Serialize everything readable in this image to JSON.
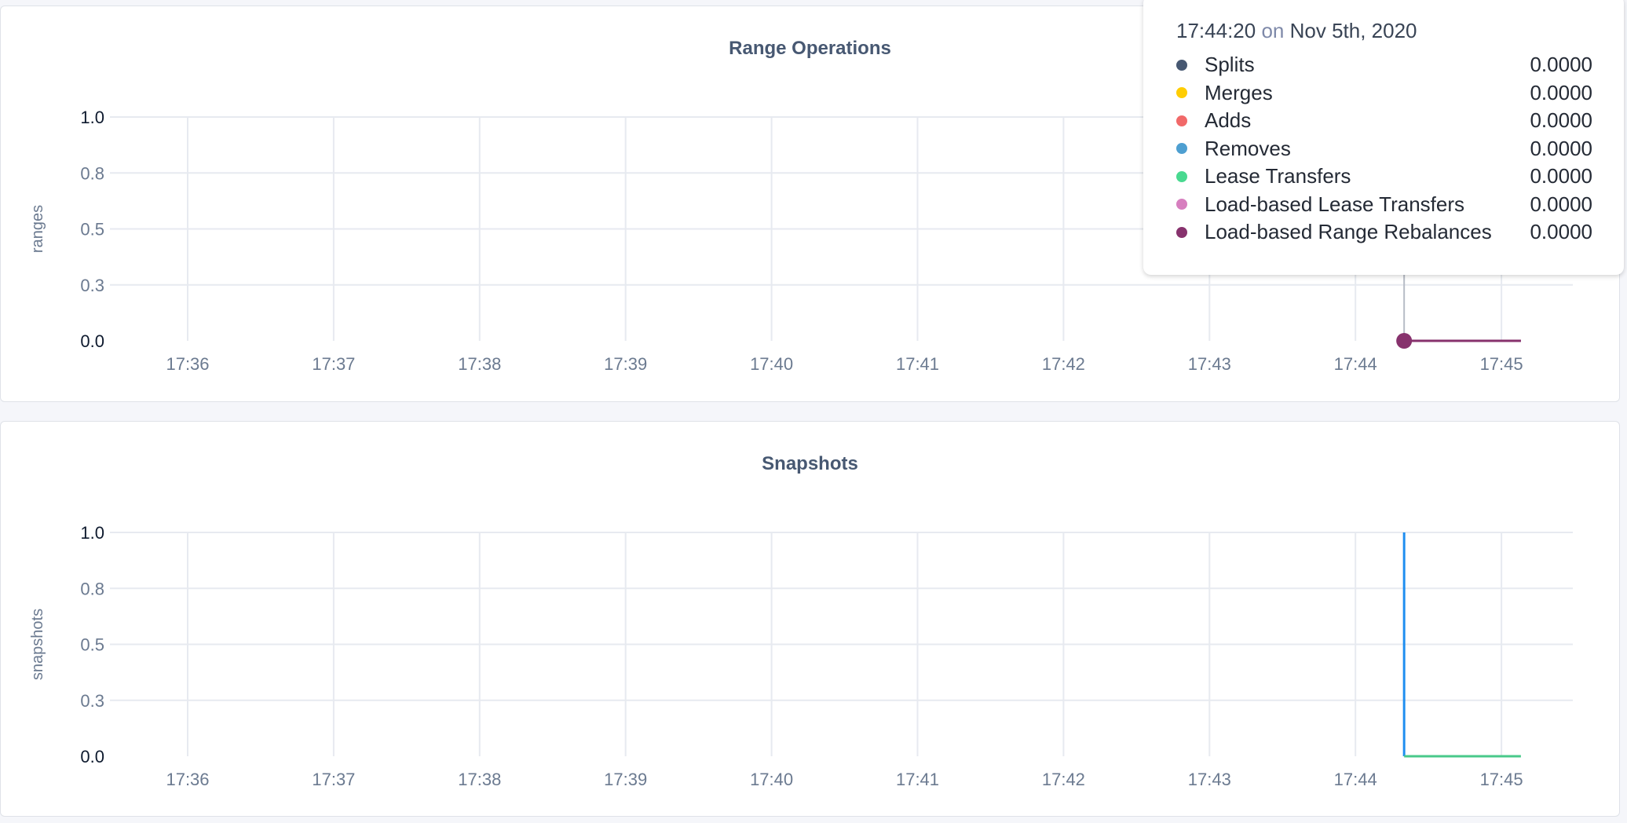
{
  "tooltip": {
    "time": "17:44:20",
    "on": "on",
    "date": "Nov 5th, 2020",
    "rows": [
      {
        "label": "Splits",
        "value": "0.0000",
        "color": "#475872"
      },
      {
        "label": "Merges",
        "value": "0.0000",
        "color": "#ffcd02"
      },
      {
        "label": "Adds",
        "value": "0.0000",
        "color": "#f16969"
      },
      {
        "label": "Removes",
        "value": "0.0000",
        "color": "#4e9fd1"
      },
      {
        "label": "Lease Transfers",
        "value": "0.0000",
        "color": "#49d990"
      },
      {
        "label": "Load-based Lease Transfers",
        "value": "0.0000",
        "color": "#d77fbf"
      },
      {
        "label": "Load-based Range Rebalances",
        "value": "0.0000",
        "color": "#87326d"
      }
    ]
  },
  "chart_data": [
    {
      "type": "line",
      "title": "Range Operations",
      "ylabel": "ranges",
      "ylim": [
        0,
        1
      ],
      "yticks": [
        "0.0",
        "0.3",
        "0.5",
        "0.8",
        "1.0"
      ],
      "xticks": [
        "17:36",
        "17:37",
        "17:38",
        "17:39",
        "17:40",
        "17:41",
        "17:42",
        "17:43",
        "17:44",
        "17:45"
      ],
      "grid": true,
      "hover_x": "17:44:20",
      "series": [
        {
          "name": "Splits",
          "color": "#475872",
          "x": [
            "17:44:20",
            "17:45:08"
          ],
          "y": [
            0,
            0
          ]
        },
        {
          "name": "Merges",
          "color": "#ffcd02",
          "x": [
            "17:44:20",
            "17:45:08"
          ],
          "y": [
            0,
            0
          ]
        },
        {
          "name": "Adds",
          "color": "#f16969",
          "x": [
            "17:44:20",
            "17:45:08"
          ],
          "y": [
            0,
            0
          ]
        },
        {
          "name": "Removes",
          "color": "#4e9fd1",
          "x": [
            "17:44:20",
            "17:45:08"
          ],
          "y": [
            0,
            0
          ]
        },
        {
          "name": "Lease Transfers",
          "color": "#49d990",
          "x": [
            "17:44:20",
            "17:45:08"
          ],
          "y": [
            0,
            0
          ]
        },
        {
          "name": "Load-based Lease Transfers",
          "color": "#d77fbf",
          "x": [
            "17:44:20",
            "17:45:08"
          ],
          "y": [
            0,
            0
          ]
        },
        {
          "name": "Load-based Range Rebalances",
          "color": "#87326d",
          "x": [
            "17:44:20",
            "17:45:08"
          ],
          "y": [
            0,
            0
          ]
        }
      ]
    },
    {
      "type": "line",
      "title": "Snapshots",
      "ylabel": "snapshots",
      "ylim": [
        0,
        1
      ],
      "yticks": [
        "0.0",
        "0.3",
        "0.5",
        "0.8",
        "1.0"
      ],
      "xticks": [
        "17:36",
        "17:37",
        "17:38",
        "17:39",
        "17:40",
        "17:41",
        "17:42",
        "17:43",
        "17:44",
        "17:45"
      ],
      "grid": true,
      "series": [
        {
          "color": "#1f8ef0",
          "x": [
            "17:44:20",
            "17:44:20"
          ],
          "y": [
            1,
            0
          ]
        },
        {
          "color": "#49c98a",
          "x": [
            "17:44:20",
            "17:45:08"
          ],
          "y": [
            0,
            0
          ]
        }
      ]
    }
  ]
}
